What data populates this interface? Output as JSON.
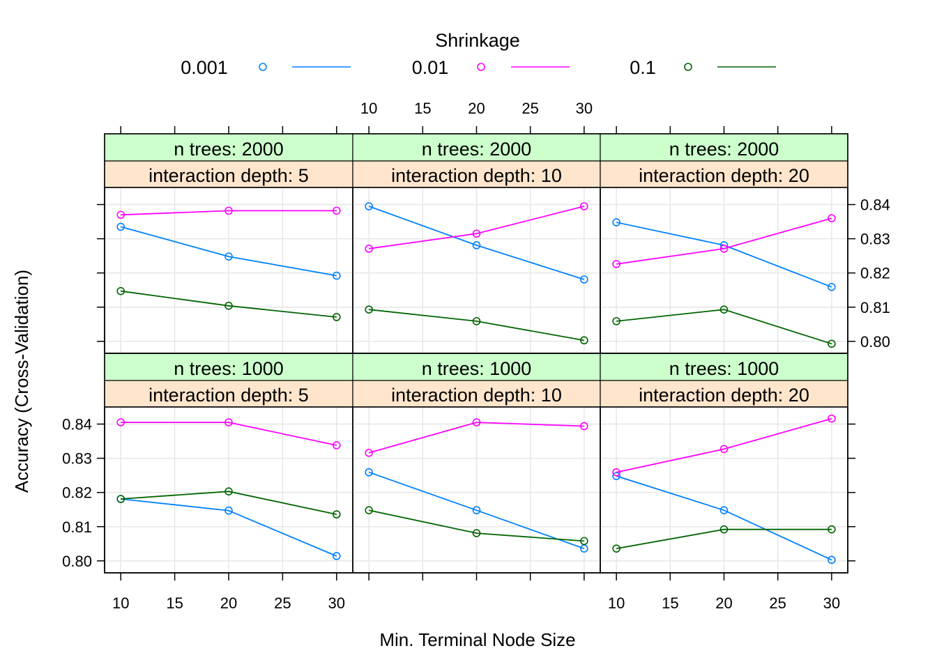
{
  "chart_data": {
    "type": "line",
    "xlabel": "Min. Terminal Node Size",
    "ylabel": "Accuracy (Cross-Validation)",
    "x": [
      10,
      20,
      30
    ],
    "x_ticks": [
      10,
      15,
      20,
      25,
      30
    ],
    "y_ticks": [
      0.8,
      0.81,
      0.82,
      0.83,
      0.84
    ],
    "y_tick_labels": [
      "0.80",
      "0.81",
      "0.82",
      "0.83",
      "0.84"
    ],
    "ylim": [
      0.7965,
      0.845
    ],
    "xlim": [
      8.5,
      31.5
    ],
    "grid": true,
    "legend": {
      "title": "Shrinkage",
      "position": "top",
      "entries": [
        "0.001",
        "0.01",
        "0.1"
      ]
    },
    "colors": {
      "0.001": "#0080ff",
      "0.01": "#ff00ff",
      "0.1": "#006400",
      "strip_top": "#ccffcc",
      "strip_bottom": "#ffe5cc"
    },
    "panels": [
      {
        "row": 0,
        "col": 0,
        "strip_top": "n trees: 2000",
        "strip_bottom": "interaction depth:  5",
        "series": [
          {
            "name": "0.001",
            "values": [
              0.8335,
              0.8248,
              0.8192
            ]
          },
          {
            "name": "0.01",
            "values": [
              0.837,
              0.8382,
              0.8382
            ]
          },
          {
            "name": "0.1",
            "values": [
              0.8147,
              0.8104,
              0.8071
            ]
          }
        ]
      },
      {
        "row": 0,
        "col": 1,
        "strip_top": "n trees: 2000",
        "strip_bottom": "interaction depth: 10",
        "series": [
          {
            "name": "0.001",
            "values": [
              0.8395,
              0.8281,
              0.8181
            ]
          },
          {
            "name": "0.01",
            "values": [
              0.8271,
              0.8315,
              0.8395
            ]
          },
          {
            "name": "0.1",
            "values": [
              0.8093,
              0.8059,
              0.8003
            ]
          }
        ]
      },
      {
        "row": 0,
        "col": 2,
        "strip_top": "n trees: 2000",
        "strip_bottom": "interaction depth: 20",
        "series": [
          {
            "name": "0.001",
            "values": [
              0.8348,
              0.8281,
              0.8159
            ]
          },
          {
            "name": "0.01",
            "values": [
              0.8226,
              0.8271,
              0.836
            ]
          },
          {
            "name": "0.1",
            "values": [
              0.8059,
              0.8093,
              0.7993
            ]
          }
        ]
      },
      {
        "row": 1,
        "col": 0,
        "strip_top": "n trees: 1000",
        "strip_bottom": "interaction depth:  5",
        "series": [
          {
            "name": "0.001",
            "values": [
              0.8181,
              0.8147,
              0.8014
            ]
          },
          {
            "name": "0.01",
            "values": [
              0.8405,
              0.8405,
              0.8338
            ]
          },
          {
            "name": "0.1",
            "values": [
              0.8181,
              0.8203,
              0.8136
            ]
          }
        ]
      },
      {
        "row": 1,
        "col": 1,
        "strip_top": "n trees: 1000",
        "strip_bottom": "interaction depth: 10",
        "series": [
          {
            "name": "0.001",
            "values": [
              0.8259,
              0.8148,
              0.8036
            ]
          },
          {
            "name": "0.01",
            "values": [
              0.8316,
              0.8405,
              0.8394
            ]
          },
          {
            "name": "0.1",
            "values": [
              0.8148,
              0.8081,
              0.8058
            ]
          }
        ]
      },
      {
        "row": 1,
        "col": 2,
        "strip_top": "n trees: 1000",
        "strip_bottom": "interaction depth: 20",
        "series": [
          {
            "name": "0.001",
            "values": [
              0.8248,
              0.8148,
              0.8003
            ]
          },
          {
            "name": "0.01",
            "values": [
              0.8259,
              0.8327,
              0.8416
            ]
          },
          {
            "name": "0.1",
            "values": [
              0.8036,
              0.8092,
              0.8092
            ]
          }
        ]
      }
    ]
  }
}
